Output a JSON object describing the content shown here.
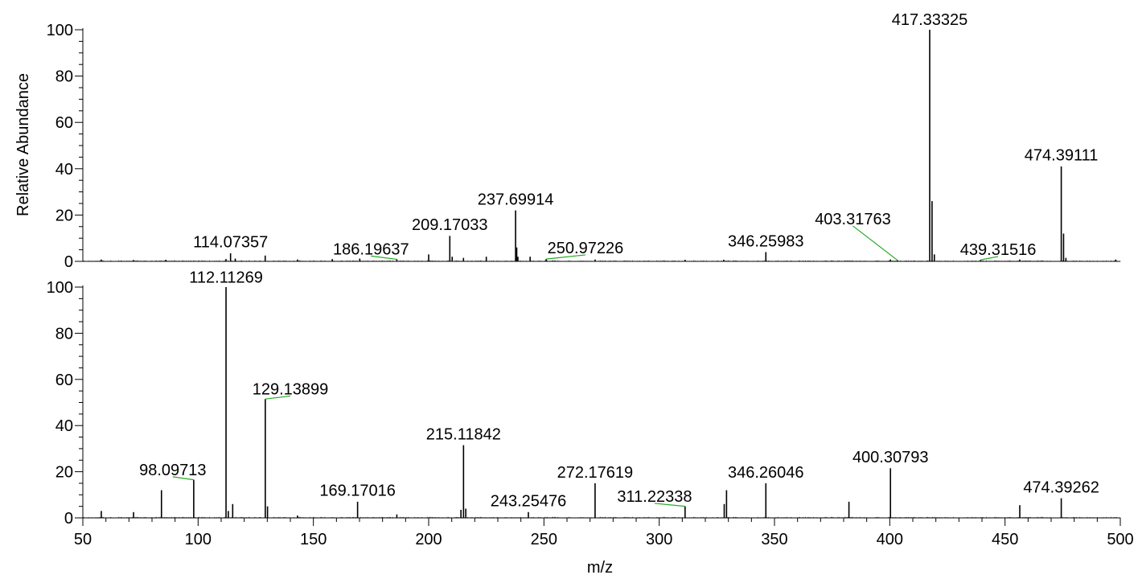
{
  "chart_data": [
    {
      "type": "bar",
      "panel": "top",
      "ylabel": "Relative Abundance",
      "xlabel": "",
      "xlim": [
        50,
        500
      ],
      "ylim": [
        0,
        100
      ],
      "yticks": [
        "0",
        "20",
        "40",
        "60",
        "80",
        "100"
      ],
      "grid": false,
      "colors": {
        "peak": "#000000",
        "leader": "#22aa22"
      },
      "peaks": [
        {
          "x": 58,
          "y": 0.8
        },
        {
          "x": 72,
          "y": 0.6
        },
        {
          "x": 86,
          "y": 0.7
        },
        {
          "x": 112.1,
          "y": 1.0
        },
        {
          "x": 114.07,
          "y": 3.5
        },
        {
          "x": 116.1,
          "y": 1.2
        },
        {
          "x": 129.1,
          "y": 2.5
        },
        {
          "x": 143.1,
          "y": 0.8
        },
        {
          "x": 158.2,
          "y": 1.0
        },
        {
          "x": 170.1,
          "y": 1.2
        },
        {
          "x": 186.2,
          "y": 0.9
        },
        {
          "x": 200.0,
          "y": 3.0
        },
        {
          "x": 209.17,
          "y": 11.0
        },
        {
          "x": 210.2,
          "y": 2.0
        },
        {
          "x": 215.1,
          "y": 1.5
        },
        {
          "x": 225.0,
          "y": 2.0
        },
        {
          "x": 237.7,
          "y": 22.0
        },
        {
          "x": 238.2,
          "y": 6.0
        },
        {
          "x": 238.7,
          "y": 2.0
        },
        {
          "x": 244.0,
          "y": 2.0
        },
        {
          "x": 250.97,
          "y": 1.0
        },
        {
          "x": 272.2,
          "y": 0.8
        },
        {
          "x": 311.2,
          "y": 0.7
        },
        {
          "x": 328.0,
          "y": 0.7
        },
        {
          "x": 346.26,
          "y": 4.0
        },
        {
          "x": 400.3,
          "y": 0.8
        },
        {
          "x": 403.32,
          "y": 0.5
        },
        {
          "x": 417.33,
          "y": 100.0
        },
        {
          "x": 418.34,
          "y": 26.0
        },
        {
          "x": 419.34,
          "y": 3.0
        },
        {
          "x": 439.32,
          "y": 0.6
        },
        {
          "x": 456.4,
          "y": 0.8
        },
        {
          "x": 474.39,
          "y": 41.0
        },
        {
          "x": 475.39,
          "y": 12.0
        },
        {
          "x": 476.4,
          "y": 1.5
        },
        {
          "x": 498.0,
          "y": 0.8
        }
      ],
      "labels": [
        {
          "text": "114.07357",
          "x": 114.07357,
          "y": 3.5,
          "lx": 114.07357,
          "ly": 6.0,
          "leader": false
        },
        {
          "text": "186.19637",
          "x": 186.19637,
          "y": 0.9,
          "lx": 175.0,
          "ly": 3.0,
          "leader": true
        },
        {
          "text": "209.17033",
          "x": 209.17033,
          "y": 11.0,
          "lx": 209.17033,
          "ly": 13.5,
          "leader": false
        },
        {
          "text": "237.69914",
          "x": 237.69914,
          "y": 22.0,
          "lx": 237.69914,
          "ly": 24.5,
          "leader": false
        },
        {
          "text": "250.97226",
          "x": 250.97226,
          "y": 1.0,
          "lx": 268.0,
          "ly": 3.5,
          "leader": true
        },
        {
          "text": "346.25983",
          "x": 346.25983,
          "y": 4.0,
          "lx": 346.25983,
          "ly": 6.5,
          "leader": false
        },
        {
          "text": "403.31763",
          "x": 403.31763,
          "y": 0.5,
          "lx": 384.0,
          "ly": 16.0,
          "leader": true
        },
        {
          "text": "417.33325",
          "x": 417.33325,
          "y": 100.0,
          "lx": 417.33325,
          "ly": 102.0,
          "leader": false
        },
        {
          "text": "439.31516",
          "x": 439.31516,
          "y": 0.6,
          "lx": 447.0,
          "ly": 2.8,
          "leader": true
        },
        {
          "text": "474.39111",
          "x": 474.39111,
          "y": 41.0,
          "lx": 474.39111,
          "ly": 43.5,
          "leader": false
        }
      ]
    },
    {
      "type": "bar",
      "panel": "bottom",
      "ylabel": "",
      "xlabel": "m/z",
      "xlim": [
        50,
        500
      ],
      "ylim": [
        0,
        100
      ],
      "xticks": [
        "50",
        "100",
        "150",
        "200",
        "250",
        "300",
        "350",
        "400",
        "450",
        "500"
      ],
      "yticks": [
        "0",
        "20",
        "40",
        "60",
        "80",
        "100"
      ],
      "grid": false,
      "colors": {
        "peak": "#000000",
        "leader": "#22aa22"
      },
      "peaks": [
        {
          "x": 58.0,
          "y": 3.0
        },
        {
          "x": 72.0,
          "y": 2.5
        },
        {
          "x": 84.1,
          "y": 12.0
        },
        {
          "x": 98.1,
          "y": 16.5
        },
        {
          "x": 112.11,
          "y": 100.0
        },
        {
          "x": 113.1,
          "y": 3.0
        },
        {
          "x": 115.0,
          "y": 6.0
        },
        {
          "x": 129.14,
          "y": 51.5
        },
        {
          "x": 130.1,
          "y": 5.0
        },
        {
          "x": 143.1,
          "y": 1.0
        },
        {
          "x": 169.17,
          "y": 7.0
        },
        {
          "x": 186.2,
          "y": 1.5
        },
        {
          "x": 214.0,
          "y": 3.5
        },
        {
          "x": 215.12,
          "y": 31.5
        },
        {
          "x": 216.1,
          "y": 4.0
        },
        {
          "x": 243.25,
          "y": 2.5
        },
        {
          "x": 272.18,
          "y": 15.0
        },
        {
          "x": 311.22,
          "y": 5.0
        },
        {
          "x": 328.2,
          "y": 6.0
        },
        {
          "x": 329.2,
          "y": 12.0
        },
        {
          "x": 346.26,
          "y": 15.0
        },
        {
          "x": 382.3,
          "y": 7.0
        },
        {
          "x": 400.31,
          "y": 21.5
        },
        {
          "x": 456.4,
          "y": 5.5
        },
        {
          "x": 474.39,
          "y": 8.5
        }
      ],
      "labels": [
        {
          "text": "98.09713",
          "x": 98.09713,
          "y": 16.5,
          "lx": 89.0,
          "ly": 18.5,
          "leader": true
        },
        {
          "text": "112.11269",
          "x": 112.11269,
          "y": 100.0,
          "lx": 112.11269,
          "ly": 102.0,
          "leader": false
        },
        {
          "text": "129.13899",
          "x": 129.13899,
          "y": 51.5,
          "lx": 140.0,
          "ly": 53.5,
          "leader": true
        },
        {
          "text": "169.17016",
          "x": 169.17016,
          "y": 7.0,
          "lx": 169.17016,
          "ly": 9.5,
          "leader": false
        },
        {
          "text": "215.11842",
          "x": 215.11842,
          "y": 31.5,
          "lx": 215.11842,
          "ly": 34.0,
          "leader": false
        },
        {
          "text": "243.25476",
          "x": 243.25476,
          "y": 2.5,
          "lx": 243.25476,
          "ly": 5.0,
          "leader": false
        },
        {
          "text": "272.17619",
          "x": 272.17619,
          "y": 15.0,
          "lx": 272.17619,
          "ly": 17.5,
          "leader": false
        },
        {
          "text": "311.22338",
          "x": 311.22338,
          "y": 5.0,
          "lx": 298.0,
          "ly": 7.0,
          "leader": true
        },
        {
          "text": "346.26046",
          "x": 346.26046,
          "y": 15.0,
          "lx": 346.26046,
          "ly": 17.5,
          "leader": false
        },
        {
          "text": "400.30793",
          "x": 400.30793,
          "y": 21.5,
          "lx": 400.30793,
          "ly": 24.0,
          "leader": false
        },
        {
          "text": "474.39262",
          "x": 474.39262,
          "y": 8.5,
          "lx": 474.39262,
          "ly": 11.0,
          "leader": false
        }
      ]
    }
  ]
}
